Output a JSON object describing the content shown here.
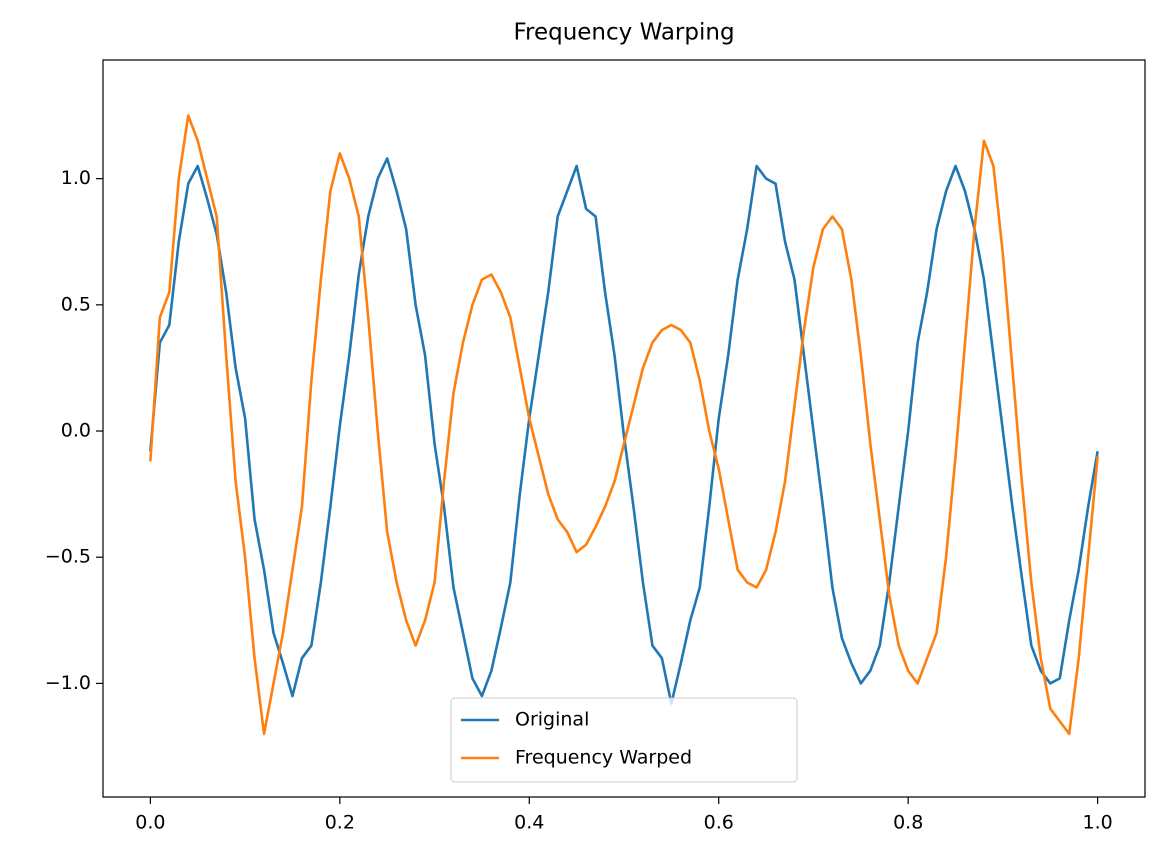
{
  "chart_data": {
    "type": "line",
    "title": "Frequency Warping",
    "x": [
      0,
      0.01,
      0.02,
      0.03,
      0.04,
      0.05,
      0.06,
      0.07,
      0.08,
      0.09,
      0.1,
      0.11,
      0.12,
      0.13,
      0.14,
      0.15,
      0.16,
      0.17,
      0.18,
      0.19,
      0.2,
      0.21,
      0.22,
      0.23,
      0.24,
      0.25,
      0.26,
      0.27,
      0.28,
      0.29,
      0.3,
      0.31,
      0.32,
      0.33,
      0.34,
      0.35,
      0.36,
      0.37,
      0.38,
      0.39,
      0.4,
      0.41,
      0.42,
      0.43,
      0.44,
      0.45,
      0.46,
      0.47,
      0.48,
      0.49,
      0.5,
      0.51,
      0.52,
      0.53,
      0.54,
      0.55,
      0.56,
      0.57,
      0.58,
      0.59,
      0.6,
      0.61,
      0.62,
      0.63,
      0.64,
      0.65,
      0.66,
      0.67,
      0.68,
      0.69,
      0.7,
      0.71,
      0.72,
      0.73,
      0.74,
      0.75,
      0.76,
      0.77,
      0.78,
      0.79,
      0.8,
      0.81,
      0.82,
      0.83,
      0.84,
      0.85,
      0.86,
      0.87,
      0.88,
      0.89,
      0.9,
      0.91,
      0.92,
      0.93,
      0.94,
      0.95,
      0.96,
      0.97,
      0.98,
      0.99,
      1
    ],
    "series": [
      {
        "name": "Original",
        "color": "#1f77b4",
        "values": [
          -0.08,
          0.35,
          0.42,
          0.75,
          0.98,
          1.05,
          0.92,
          0.78,
          0.55,
          0.25,
          0.05,
          -0.35,
          -0.55,
          -0.8,
          -0.92,
          -1.05,
          -0.9,
          -0.85,
          -0.6,
          -0.3,
          0.02,
          0.3,
          0.62,
          0.85,
          1.0,
          1.08,
          0.95,
          0.8,
          0.5,
          0.3,
          -0.05,
          -0.3,
          -0.62,
          -0.8,
          -0.98,
          -1.05,
          -0.95,
          -0.78,
          -0.6,
          -0.25,
          0.05,
          0.3,
          0.55,
          0.85,
          0.95,
          1.05,
          0.88,
          0.85,
          0.55,
          0.3,
          -0.02,
          -0.3,
          -0.6,
          -0.85,
          -0.9,
          -1.08,
          -0.92,
          -0.75,
          -0.62,
          -0.3,
          0.05,
          0.3,
          0.6,
          0.8,
          1.05,
          1.0,
          0.98,
          0.75,
          0.6,
          0.3,
          0.0,
          -0.3,
          -0.62,
          -0.82,
          -0.92,
          -1.0,
          -0.95,
          -0.85,
          -0.6,
          -0.3,
          0.0,
          0.35,
          0.55,
          0.8,
          0.95,
          1.05,
          0.95,
          0.8,
          0.6,
          0.3,
          0.0,
          -0.3,
          -0.58,
          -0.85,
          -0.95,
          -1.0,
          -0.98,
          -0.75,
          -0.55,
          -0.3,
          -0.08
        ]
      },
      {
        "name": "Frequency Warped",
        "color": "#ff7f0e",
        "values": [
          -0.12,
          0.45,
          0.55,
          1.0,
          1.25,
          1.15,
          1.0,
          0.85,
          0.3,
          -0.2,
          -0.5,
          -0.9,
          -1.2,
          -1.0,
          -0.8,
          -0.55,
          -0.3,
          0.2,
          0.6,
          0.95,
          1.1,
          1.0,
          0.85,
          0.45,
          0.0,
          -0.4,
          -0.6,
          -0.75,
          -0.85,
          -0.75,
          -0.6,
          -0.2,
          0.15,
          0.35,
          0.5,
          0.6,
          0.62,
          0.55,
          0.45,
          0.25,
          0.05,
          -0.1,
          -0.25,
          -0.35,
          -0.4,
          -0.48,
          -0.45,
          -0.38,
          -0.3,
          -0.2,
          -0.05,
          0.1,
          0.25,
          0.35,
          0.4,
          0.42,
          0.4,
          0.35,
          0.2,
          0.0,
          -0.15,
          -0.35,
          -0.55,
          -0.6,
          -0.62,
          -0.55,
          -0.4,
          -0.2,
          0.1,
          0.4,
          0.65,
          0.8,
          0.85,
          0.8,
          0.6,
          0.3,
          -0.05,
          -0.35,
          -0.65,
          -0.85,
          -0.95,
          -1.0,
          -0.9,
          -0.8,
          -0.5,
          -0.1,
          0.35,
          0.8,
          1.15,
          1.05,
          0.7,
          0.25,
          -0.2,
          -0.6,
          -0.9,
          -1.1,
          -1.15,
          -1.2,
          -0.9,
          -0.5,
          -0.1
        ]
      }
    ],
    "xlim": [
      -0.05,
      1.05
    ],
    "ylim": [
      -1.45,
      1.47
    ],
    "xticks": [
      {
        "value": 0,
        "label": "0.0"
      },
      0.2,
      0.4,
      0.6,
      0.8,
      {
        "value": 1,
        "label": "1.0"
      }
    ],
    "yticks": [
      {
        "value": -1,
        "label": "−1.0"
      },
      {
        "value": -0.5,
        "label": "−0.5"
      },
      {
        "value": 0,
        "label": "0.0"
      },
      0.5,
      {
        "value": 1,
        "label": "1.0"
      }
    ],
    "grid": false,
    "legend": "lower center"
  }
}
